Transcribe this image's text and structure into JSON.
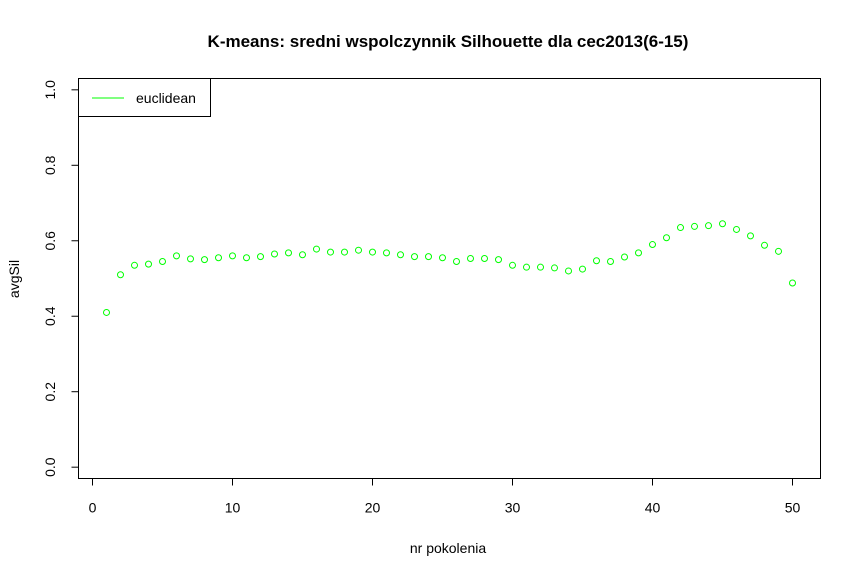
{
  "chart_data": {
    "type": "scatter",
    "title": "K-means: sredni wspolczynnik Silhouette dla cec2013(6-15)",
    "xlabel": "nr pokolenia",
    "ylabel": "avgSil",
    "xlim": [
      -1,
      52
    ],
    "ylim": [
      -0.03,
      1.03
    ],
    "xticks": [
      0,
      10,
      20,
      30,
      40,
      50
    ],
    "yticks": [
      0.0,
      0.2,
      0.4,
      0.6,
      0.8,
      1.0
    ],
    "xtick_labels": [
      "0",
      "10",
      "20",
      "30",
      "40",
      "50"
    ],
    "ytick_labels": [
      "0.0",
      "0.2",
      "0.4",
      "0.6",
      "0.8",
      "1.0"
    ],
    "legend": {
      "position": "top-left",
      "entries": [
        {
          "label": "euclidean",
          "color": "#00ff00"
        }
      ]
    },
    "series": [
      {
        "name": "euclidean",
        "color": "#00ff00",
        "marker": "open-circle",
        "x": [
          1,
          2,
          3,
          4,
          5,
          6,
          7,
          8,
          9,
          10,
          11,
          12,
          13,
          14,
          15,
          16,
          17,
          18,
          19,
          20,
          21,
          22,
          23,
          24,
          25,
          26,
          27,
          28,
          29,
          30,
          31,
          32,
          33,
          34,
          35,
          36,
          37,
          38,
          39,
          40,
          41,
          42,
          43,
          44,
          45,
          46,
          47,
          48,
          49,
          50
        ],
        "y": [
          0.41,
          0.51,
          0.535,
          0.538,
          0.545,
          0.56,
          0.552,
          0.55,
          0.555,
          0.56,
          0.555,
          0.558,
          0.565,
          0.568,
          0.563,
          0.578,
          0.57,
          0.57,
          0.575,
          0.57,
          0.568,
          0.563,
          0.558,
          0.558,
          0.555,
          0.545,
          0.553,
          0.553,
          0.55,
          0.535,
          0.53,
          0.53,
          0.528,
          0.52,
          0.525,
          0.547,
          0.545,
          0.557,
          0.568,
          0.59,
          0.608,
          0.635,
          0.638,
          0.64,
          0.645,
          0.63,
          0.613,
          0.588,
          0.572,
          0.488
        ]
      }
    ]
  }
}
